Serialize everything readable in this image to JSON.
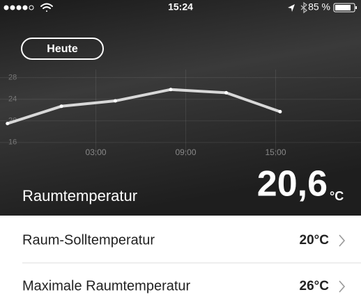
{
  "status_bar": {
    "time": "15:24",
    "battery": "85 %"
  },
  "button": {
    "label": "Heute"
  },
  "chart_data": {
    "type": "line",
    "x": [
      -2.9,
      0.7,
      4.3,
      8,
      11.7,
      15.3
    ],
    "values": [
      19.5,
      22.7,
      23.7,
      25.8,
      25.2,
      21.7
    ],
    "color": "#d8d8d8",
    "xlim": [
      -3.4,
      20.7
    ],
    "ylim": [
      13.4,
      29.5
    ],
    "xticks": [
      {
        "value": 3,
        "label": "03:00"
      },
      {
        "value": 9,
        "label": "09:00"
      },
      {
        "value": 15,
        "label": "15:00"
      }
    ],
    "yticks": [
      16,
      20,
      24,
      28
    ],
    "grid": true
  },
  "current": {
    "label": "Raumtemperatur",
    "value": "20,6",
    "unit": "°C"
  },
  "settings": [
    {
      "label": "Raum-Solltemperatur",
      "value": "20°C"
    },
    {
      "label": "Maximale Raumtemperatur",
      "value": "26°C"
    }
  ]
}
